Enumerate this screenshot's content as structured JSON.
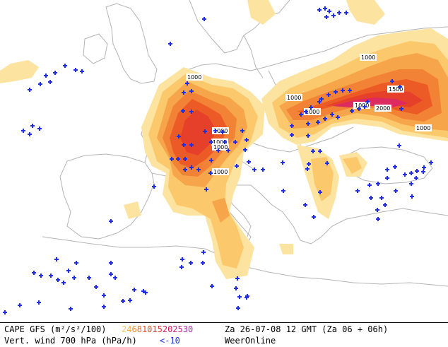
{
  "map": {
    "contour_labels": [
      {
        "text": "1000"
      },
      {
        "text": "1000"
      },
      {
        "text": "1000"
      },
      {
        "text": "1000"
      },
      {
        "text": "1000"
      },
      {
        "text": "1000"
      },
      {
        "text": "1000"
      },
      {
        "text": "1000"
      },
      {
        "text": "1000"
      },
      {
        "text": "1000"
      },
      {
        "text": "1500"
      },
      {
        "text": "2000"
      }
    ]
  },
  "legend": {
    "cape_label": "CAPE GFS (m²/s²/100)",
    "cape_scale": [
      {
        "value": "2",
        "color": "#f4c86a"
      },
      {
        "value": "4",
        "color": "#f6ac48"
      },
      {
        "value": "6",
        "color": "#f38a34"
      },
      {
        "value": "8",
        "color": "#f06a2c"
      },
      {
        "value": "10",
        "color": "#ea4a20"
      },
      {
        "value": "15",
        "color": "#e6302e"
      },
      {
        "value": "20",
        "color": "#d81e5c"
      },
      {
        "value": "25",
        "color": "#c81c88"
      },
      {
        "value": "30",
        "color": "#b02ab4"
      }
    ],
    "date_label": "Za 26-07-08 12 GMT (Za 06 + 06h)",
    "vwind_label": "Vert. wind 700 hPa (hPa/h)",
    "vwind_threshold": "<-10",
    "vwind_color": "#2030e0",
    "brand": "WeerOnline"
  },
  "colors": {
    "cape_2": "#fde3a0",
    "cape_4": "#fbc86c",
    "cape_6": "#f7a54a",
    "cape_8": "#f28236",
    "cape_10": "#ec5a26",
    "cape_15": "#e6402a",
    "cape_20": "#dd2a60",
    "plus": "#2030e0",
    "coast": "#b4b4b4"
  }
}
